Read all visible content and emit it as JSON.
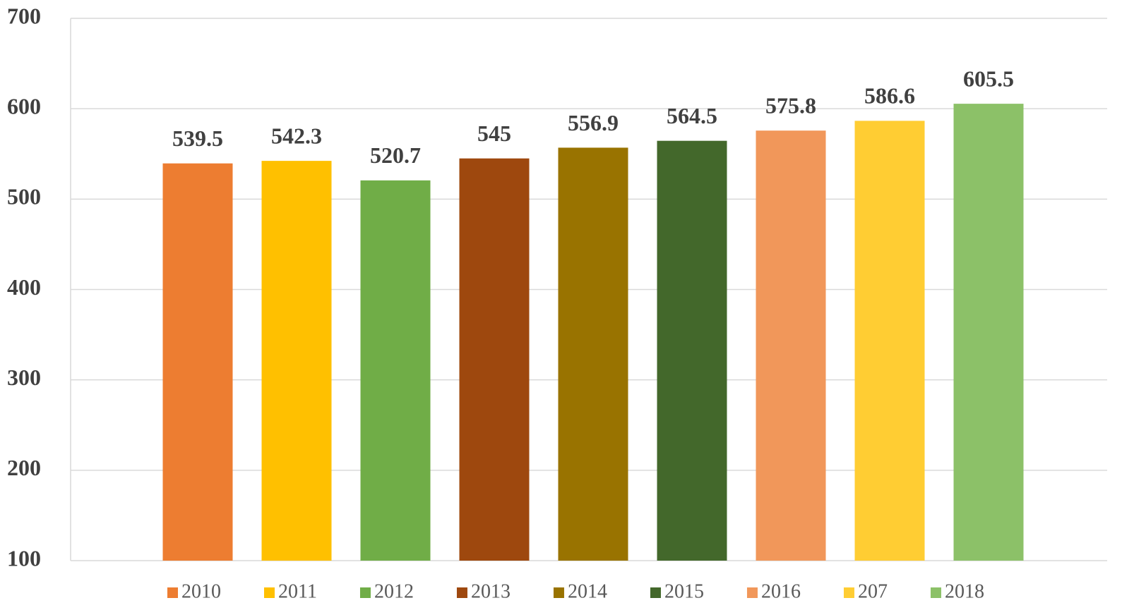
{
  "chart_data": {
    "type": "bar",
    "categories": [
      null
    ],
    "series": [
      {
        "name": "2010",
        "color": "#ed7d31",
        "values": [
          539.5
        ]
      },
      {
        "name": "2011",
        "color": "#ffc000",
        "values": [
          542.3
        ]
      },
      {
        "name": "2012",
        "color": "#70ad47",
        "values": [
          520.7
        ]
      },
      {
        "name": "2013",
        "color": "#9e480e",
        "values": [
          545
        ]
      },
      {
        "name": "2014",
        "color": "#997300",
        "values": [
          556.9
        ]
      },
      {
        "name": "2015",
        "color": "#43682b",
        "values": [
          564.5
        ]
      },
      {
        "name": "2016",
        "color": "#f1975a",
        "values": [
          575.8
        ]
      },
      {
        "name": "207",
        "color": "#ffcd33",
        "values": [
          586.6
        ]
      },
      {
        "name": "2018",
        "color": "#8cc168",
        "values": [
          605.5
        ]
      }
    ],
    "ylim": [
      100,
      700
    ],
    "yticks": [
      100,
      200,
      300,
      400,
      500,
      600,
      700
    ],
    "grid": true,
    "legend": "bottom"
  }
}
